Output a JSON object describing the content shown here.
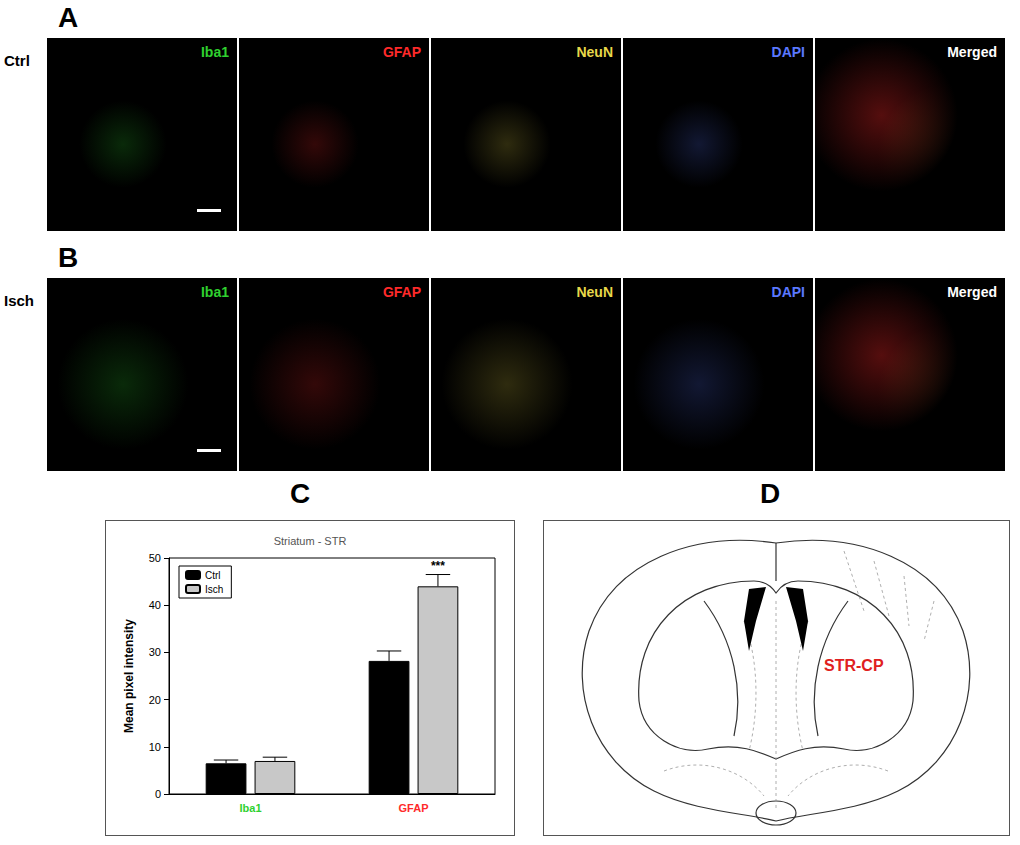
{
  "panels": [
    {
      "letter": "A",
      "row_label": "Ctrl"
    },
    {
      "letter": "B",
      "row_label": "Isch"
    }
  ],
  "channels": [
    {
      "label": "Iba1",
      "color": "#2fd12f"
    },
    {
      "label": "GFAP",
      "color": "#ff2a2a"
    },
    {
      "label": "NeuN",
      "color": "#e8d84a"
    },
    {
      "label": "DAPI",
      "color": "#5a78ff"
    },
    {
      "label": "Merged",
      "color": "#ffffff"
    }
  ],
  "chart_letter": "C",
  "chart_data": {
    "type": "bar",
    "title": "Striatum - STR",
    "y_label": "Mean pixel intensity",
    "categories": [
      "Iba1",
      "GFAP"
    ],
    "series": [
      {
        "name": "Ctrl",
        "color": "#000000",
        "values": [
          6.5,
          28.2
        ],
        "errors": [
          0.7,
          2.1
        ]
      },
      {
        "name": "Isch",
        "color": "#c8c8c8",
        "values": [
          7.0,
          44.0
        ],
        "errors": [
          0.8,
          2.5
        ]
      }
    ],
    "ylim": [
      0,
      50
    ],
    "yticks": [
      0,
      10,
      20,
      30,
      40,
      50
    ],
    "grid": false,
    "legend": "top-left",
    "annotations": [
      {
        "text": "***",
        "category": "GFAP",
        "series": "Isch"
      }
    ]
  },
  "diagram": {
    "letter": "D",
    "label": "STR-CP"
  }
}
